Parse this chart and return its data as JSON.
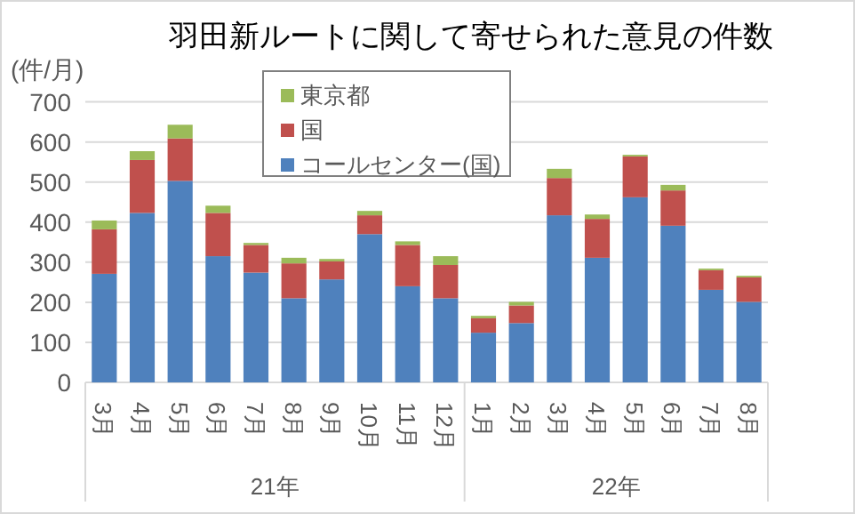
{
  "chart_data": {
    "type": "bar",
    "stacked": true,
    "title": "羽田新ルートに関して寄せられた意見の件数",
    "ylabel": "(件/月)",
    "categories": [
      "3月",
      "4月",
      "5月",
      "6月",
      "7月",
      "8月",
      "9月",
      "10月",
      "11月",
      "12月",
      "1月",
      "2月",
      "3月",
      "4月",
      "5月",
      "6月",
      "7月",
      "8月"
    ],
    "series": [
      {
        "name": "コールセンター(国)",
        "color": "#4f81bd",
        "values": [
          271,
          423,
          503,
          315,
          274,
          210,
          257,
          370,
          240,
          210,
          124,
          148,
          417,
          311,
          462,
          391,
          231,
          201
        ]
      },
      {
        "name": "国",
        "color": "#c0504d",
        "values": [
          111,
          132,
          106,
          108,
          69,
          87,
          45,
          47,
          103,
          83,
          36,
          44,
          93,
          97,
          102,
          88,
          49,
          61
        ]
      },
      {
        "name": "東京都",
        "color": "#9bbb59",
        "values": [
          22,
          22,
          34,
          18,
          5,
          14,
          6,
          11,
          9,
          22,
          6,
          9,
          23,
          11,
          4,
          14,
          4,
          4
        ]
      }
    ],
    "ylim": [
      0,
      700
    ],
    "yticks": [
      0,
      100,
      200,
      300,
      400,
      500,
      600,
      700
    ],
    "grid": "y",
    "legend": "top",
    "annotations": [
      "21年",
      "22年"
    ]
  }
}
